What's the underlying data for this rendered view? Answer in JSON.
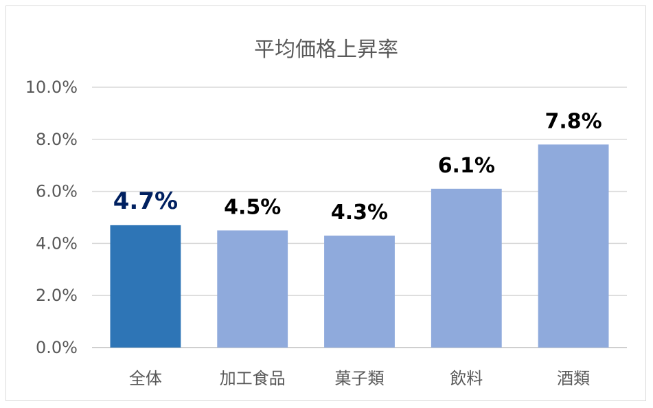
{
  "chart_data": {
    "type": "bar",
    "title": "平均価格上昇率",
    "categories": [
      "全体",
      "加工食品",
      "菓子類",
      "飲料",
      "酒類"
    ],
    "values": [
      4.7,
      4.5,
      4.3,
      6.1,
      7.8
    ],
    "data_labels": [
      "4.7%",
      "4.5%",
      "4.3%",
      "6.1%",
      "7.8%"
    ],
    "ylim": [
      0,
      10
    ],
    "yticks": [
      0,
      2,
      4,
      6,
      8,
      10
    ],
    "ytick_labels": [
      "0.0%",
      "2.0%",
      "4.0%",
      "6.0%",
      "8.0%",
      "10.0%"
    ],
    "grid": true,
    "highlight_index": 0,
    "colors": {
      "highlight": "#2e75b6",
      "bar": "#8faadc",
      "highlight_label": "#002060",
      "label": "#000000"
    }
  }
}
